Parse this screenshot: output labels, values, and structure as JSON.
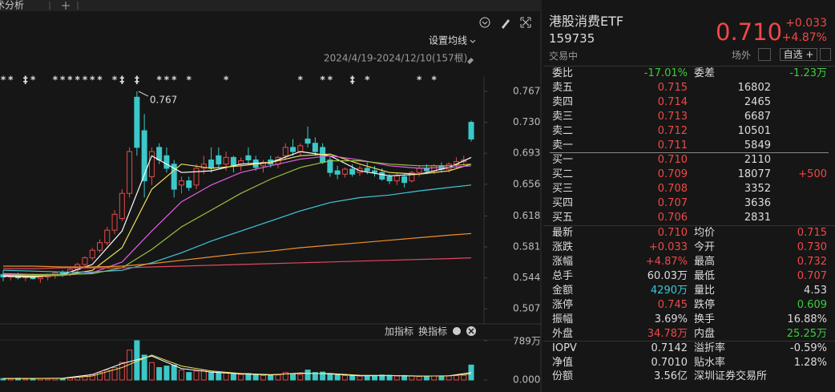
{
  "toolbar": {
    "tab": "技术分析",
    "ma_setting": "设置均线",
    "range": "2024/4/19-2024/12/10(157根)",
    "add_indicator": "加指标",
    "switch_indicator": "换指标"
  },
  "chart_data": {
    "type": "candlestick",
    "ylim": [
      0.4928,
      0.7852
    ],
    "yticks": [
      0.767,
      {
        "value": 0.73,
        "label": "0.730"
      },
      0.693,
      0.656,
      0.618,
      0.581,
      0.544,
      0.507
    ],
    "candles": [
      [
        0.548,
        0.553,
        0.54,
        0.545
      ],
      [
        0.545,
        0.549,
        0.541,
        0.547
      ],
      [
        0.547,
        0.55,
        0.542,
        0.544
      ],
      [
        0.544,
        0.548,
        0.54,
        0.546
      ],
      [
        0.546,
        0.549,
        0.542,
        0.543
      ],
      [
        0.543,
        0.547,
        0.538,
        0.545
      ],
      [
        0.545,
        0.549,
        0.541,
        0.547
      ],
      [
        0.547,
        0.552,
        0.543,
        0.55
      ],
      [
        0.55,
        0.553,
        0.545,
        0.548
      ],
      [
        0.548,
        0.556,
        0.546,
        0.554
      ],
      [
        0.554,
        0.562,
        0.551,
        0.56
      ],
      [
        0.56,
        0.57,
        0.557,
        0.568
      ],
      [
        0.568,
        0.58,
        0.565,
        0.577
      ],
      [
        0.577,
        0.59,
        0.574,
        0.586
      ],
      [
        0.586,
        0.605,
        0.583,
        0.601
      ],
      [
        0.601,
        0.625,
        0.596,
        0.62
      ],
      [
        0.615,
        0.65,
        0.612,
        0.645
      ],
      [
        0.645,
        0.7,
        0.64,
        0.695
      ],
      [
        0.76,
        0.767,
        0.69,
        0.7
      ],
      [
        0.72,
        0.74,
        0.64,
        0.66
      ],
      [
        0.665,
        0.7,
        0.655,
        0.695
      ],
      [
        0.7,
        0.705,
        0.68,
        0.685
      ],
      [
        0.69,
        0.7,
        0.67,
        0.675
      ],
      [
        0.68,
        0.685,
        0.64,
        0.65
      ],
      [
        0.655,
        0.665,
        0.645,
        0.66
      ],
      [
        0.66,
        0.665,
        0.648,
        0.652
      ],
      [
        0.655,
        0.68,
        0.65,
        0.675
      ],
      [
        0.675,
        0.69,
        0.668,
        0.68
      ],
      [
        0.685,
        0.7,
        0.67,
        0.675
      ],
      [
        0.69,
        0.7,
        0.675,
        0.68
      ],
      [
        0.68,
        0.695,
        0.672,
        0.688
      ],
      [
        0.688,
        0.69,
        0.67,
        0.678
      ],
      [
        0.68,
        0.688,
        0.672,
        0.684
      ],
      [
        0.69,
        0.7,
        0.68,
        0.685
      ],
      [
        0.685,
        0.69,
        0.672,
        0.676
      ],
      [
        0.678,
        0.685,
        0.67,
        0.682
      ],
      [
        0.685,
        0.69,
        0.676,
        0.68
      ],
      [
        0.68,
        0.69,
        0.675,
        0.688
      ],
      [
        0.69,
        0.705,
        0.685,
        0.7
      ],
      [
        0.7,
        0.71,
        0.69,
        0.695
      ],
      [
        0.695,
        0.705,
        0.69,
        0.702
      ],
      [
        0.71,
        0.725,
        0.7,
        0.705
      ],
      [
        0.705,
        0.712,
        0.69,
        0.695
      ],
      [
        0.7,
        0.705,
        0.68,
        0.682
      ],
      [
        0.685,
        0.69,
        0.665,
        0.67
      ],
      [
        0.672,
        0.678,
        0.662,
        0.668
      ],
      [
        0.668,
        0.676,
        0.664,
        0.674
      ],
      [
        0.674,
        0.68,
        0.665,
        0.668
      ],
      [
        0.67,
        0.678,
        0.666,
        0.675
      ],
      [
        0.675,
        0.682,
        0.668,
        0.672
      ],
      [
        0.672,
        0.678,
        0.665,
        0.67
      ],
      [
        0.67,
        0.675,
        0.66,
        0.662
      ],
      [
        0.665,
        0.668,
        0.656,
        0.66
      ],
      [
        0.66,
        0.67,
        0.655,
        0.666
      ],
      [
        0.665,
        0.668,
        0.652,
        0.658
      ],
      [
        0.66,
        0.672,
        0.658,
        0.67
      ],
      [
        0.67,
        0.678,
        0.665,
        0.675
      ],
      [
        0.675,
        0.68,
        0.668,
        0.672
      ],
      [
        0.672,
        0.68,
        0.668,
        0.678
      ],
      [
        0.678,
        0.682,
        0.67,
        0.674
      ],
      [
        0.674,
        0.682,
        0.67,
        0.68
      ],
      [
        0.68,
        0.688,
        0.675,
        0.683
      ],
      [
        0.683,
        0.69,
        0.678,
        0.685
      ],
      [
        0.73,
        0.732,
        0.707,
        0.71
      ]
    ],
    "high_annotation": "0.767",
    "markers": [
      {
        "index": 0,
        "label": "*"
      },
      {
        "index": 1,
        "label": "*"
      },
      {
        "index": 3,
        "label": "‡"
      },
      {
        "index": 4,
        "label": "*"
      },
      {
        "index": 7,
        "label": "*"
      },
      {
        "index": 8,
        "label": "*"
      },
      {
        "index": 9,
        "label": "*"
      },
      {
        "index": 10,
        "label": "*"
      },
      {
        "index": 11,
        "label": "*"
      },
      {
        "index": 12,
        "label": "*"
      },
      {
        "index": 13,
        "label": "*"
      },
      {
        "index": 15,
        "label": "*"
      },
      {
        "index": 16,
        "label": "‡"
      },
      {
        "index": 18,
        "label": "‡"
      },
      {
        "index": 21,
        "label": "*"
      },
      {
        "index": 22,
        "label": "*"
      },
      {
        "index": 23,
        "label": "*"
      },
      {
        "index": 25,
        "label": "*"
      },
      {
        "index": 30,
        "label": "*"
      },
      {
        "index": 40,
        "label": "*"
      },
      {
        "index": 43,
        "label": "*"
      },
      {
        "index": 44,
        "label": "*"
      },
      {
        "index": 47,
        "label": "‡"
      },
      {
        "index": 49,
        "label": "*"
      },
      {
        "index": 56,
        "label": "*"
      },
      {
        "index": 58,
        "label": "*"
      }
    ],
    "ma_x": [
      0,
      4,
      8,
      12,
      16,
      20,
      24,
      28,
      32,
      36,
      40,
      44,
      48,
      52,
      56,
      60,
      63
    ],
    "ma_lines": [
      {
        "color": "#ffffff",
        "values": [
          0.546,
          0.545,
          0.548,
          0.56,
          0.6,
          0.69,
          0.67,
          0.672,
          0.68,
          0.682,
          0.695,
          0.69,
          0.672,
          0.666,
          0.668,
          0.676,
          0.688
        ]
      },
      {
        "color": "#f0e060",
        "values": [
          0.547,
          0.546,
          0.547,
          0.553,
          0.58,
          0.65,
          0.68,
          0.675,
          0.678,
          0.682,
          0.69,
          0.692,
          0.68,
          0.67,
          0.668,
          0.672,
          0.68
        ]
      },
      {
        "color": "#e060e0",
        "values": [
          0.548,
          0.547,
          0.547,
          0.55,
          0.563,
          0.6,
          0.635,
          0.655,
          0.67,
          0.678,
          0.686,
          0.69,
          0.685,
          0.678,
          0.675,
          0.676,
          0.678
        ]
      },
      {
        "color": "#9ac040",
        "values": [
          0.549,
          0.548,
          0.548,
          0.549,
          0.556,
          0.578,
          0.605,
          0.625,
          0.645,
          0.662,
          0.676,
          0.684,
          0.684,
          0.68,
          0.678,
          0.678,
          0.68
        ]
      },
      {
        "color": "#40c8d8",
        "values": [
          0.553,
          0.552,
          0.551,
          0.551,
          0.553,
          0.562,
          0.574,
          0.588,
          0.6,
          0.612,
          0.624,
          0.634,
          0.64,
          0.643,
          0.648,
          0.652,
          0.655
        ]
      },
      {
        "color": "#f0902a",
        "values": [
          0.558,
          0.558,
          0.557,
          0.557,
          0.558,
          0.561,
          0.565,
          0.569,
          0.573,
          0.576,
          0.58,
          0.583,
          0.586,
          0.589,
          0.592,
          0.595,
          0.597
        ]
      },
      {
        "color": "#e04860",
        "values": [
          0.555,
          0.555,
          0.556,
          0.556,
          0.556,
          0.557,
          0.558,
          0.559,
          0.56,
          0.561,
          0.562,
          0.563,
          0.564,
          0.565,
          0.566,
          0.567,
          0.568
        ]
      }
    ],
    "volume_ylim": [
      0,
      789
    ],
    "volume_ticks": [
      {
        "value": 789,
        "label": "789万"
      },
      {
        "value": 0,
        "label": "0.000"
      }
    ],
    "volume": [
      30,
      25,
      35,
      20,
      25,
      30,
      28,
      35,
      30,
      45,
      60,
      80,
      110,
      150,
      200,
      250,
      350,
      600,
      789,
      500,
      350,
      250,
      280,
      300,
      200,
      150,
      180,
      200,
      160,
      150,
      140,
      120,
      110,
      130,
      100,
      90,
      95,
      100,
      150,
      120,
      110,
      200,
      150,
      160,
      130,
      100,
      90,
      85,
      80,
      90,
      85,
      100,
      95,
      80,
      90,
      85,
      70,
      75,
      80,
      70,
      85,
      90,
      95,
      300
    ],
    "volume_ma": [
      {
        "color": "#ffffff",
        "values": [
          28,
          30,
          35,
          110,
          330,
          480,
          230,
          160,
          120,
          100,
          140,
          120,
          85,
          88,
          78,
          85,
          150
        ]
      },
      {
        "color": "#f0e060",
        "values": [
          30,
          30,
          32,
          80,
          250,
          500,
          280,
          180,
          130,
          110,
          130,
          130,
          95,
          90,
          80,
          82,
          120
        ]
      }
    ]
  },
  "header": {
    "name": "港股消费ETF",
    "code": "159735",
    "price": "0.710",
    "change": "+0.033",
    "change_pct": "+4.87%",
    "status": "交易中",
    "offsite": "场外",
    "watchlist": "自选 +"
  },
  "order_book": {
    "ratio_label": "委比",
    "ratio": "-17.01%",
    "diff_label": "委差",
    "diff": "-1.23万",
    "asks": [
      [
        "卖五",
        "0.715",
        "16802"
      ],
      [
        "卖四",
        "0.714",
        "2465"
      ],
      [
        "卖三",
        "0.713",
        "6687"
      ],
      [
        "卖二",
        "0.712",
        "10501"
      ],
      [
        "卖一",
        "0.711",
        "5849"
      ]
    ],
    "bids": [
      [
        "买一",
        "0.710",
        "2110"
      ],
      [
        "买二",
        "0.709",
        "18077",
        "+500"
      ],
      [
        "买三",
        "0.708",
        "3352"
      ],
      [
        "买四",
        "0.707",
        "3636"
      ],
      [
        "买五",
        "0.706",
        "2831"
      ]
    ]
  },
  "stats": [
    [
      "最新",
      "0.710",
      "均价",
      "0.715"
    ],
    [
      "涨跌",
      "+0.033",
      "今开",
      "0.730"
    ],
    [
      "涨幅",
      "+4.87%",
      "最高",
      "0.732"
    ],
    [
      "总手",
      "60.03万",
      "最低",
      "0.707"
    ],
    [
      "金额",
      "4290万",
      "量比",
      "4.53"
    ],
    [
      "涨停",
      "0.745",
      "跌停",
      "0.609"
    ],
    [
      "振幅",
      "3.69%",
      "换手",
      "16.88%"
    ],
    [
      "外盘",
      "34.78万",
      "内盘",
      "25.25万"
    ]
  ],
  "fund": [
    [
      "IOPV",
      "0.7142",
      "溢折率",
      "-0.59%"
    ],
    [
      "净值",
      "0.7010",
      "贴水率",
      "1.28%"
    ],
    [
      "份额",
      "3.56亿",
      "深圳证券交易所"
    ]
  ]
}
